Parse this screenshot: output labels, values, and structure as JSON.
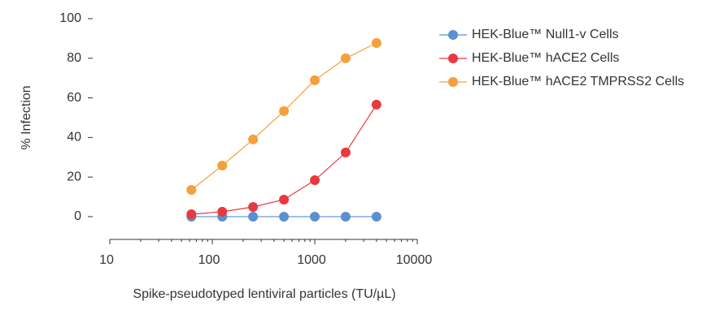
{
  "chart_data": {
    "type": "line",
    "x_label": "Spike-pseudotyped lentiviral particles (TU/µL)",
    "y_label": "% Infection",
    "x": [
      62.5,
      125,
      250,
      500,
      1000,
      2000,
      4000
    ],
    "series": [
      {
        "name": "HEK-Blue™ Null1-v Cells",
        "color": "#5b8fd0",
        "values": [
          0,
          0,
          0,
          0,
          0,
          0,
          0
        ]
      },
      {
        "name": "HEK-Blue™ hACE2 Cells",
        "color": "#e8393f",
        "values": [
          1.2,
          2.5,
          4.9,
          8.6,
          18.4,
          32.4,
          56.6
        ]
      },
      {
        "name": "HEK-Blue™ hACE2 TMPRSS2 Cells",
        "color": "#f4a03c",
        "values": [
          13.5,
          25.8,
          39,
          53.3,
          68.9,
          80,
          87.7
        ]
      }
    ],
    "xlim": [
      10,
      10000
    ],
    "xticks": [
      10,
      100,
      1000,
      10000
    ],
    "x_log": true,
    "ylim": [
      -11.5,
      100
    ],
    "yticks": [
      0,
      20,
      40,
      60,
      80,
      100
    ],
    "legend": "top-right"
  }
}
